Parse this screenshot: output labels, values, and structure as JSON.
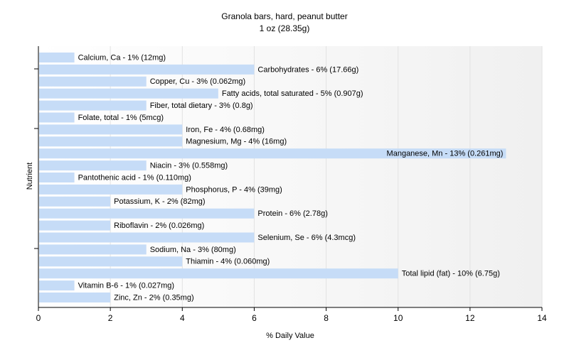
{
  "chart_data": {
    "type": "bar",
    "orientation": "horizontal",
    "title": "Granola bars, hard, peanut butter",
    "subtitle": "1 oz (28.35g)",
    "xlabel": "% Daily Value",
    "ylabel": "Nutrient",
    "xlim": [
      0,
      14
    ],
    "xticks": [
      0,
      2,
      4,
      6,
      8,
      10,
      12,
      14
    ],
    "grid": true,
    "colors": {
      "bar_fill": "#c6dcf7",
      "background_band": "#f2f2f2",
      "grid": "#e2e2e2",
      "axis": "#000000"
    },
    "categories": [
      "Calcium, Ca",
      "Carbohydrates",
      "Copper, Cu",
      "Fatty acids, total saturated",
      "Fiber, total dietary",
      "Folate, total",
      "Iron, Fe",
      "Magnesium, Mg",
      "Manganese, Mn",
      "Niacin",
      "Pantothenic acid",
      "Phosphorus, P",
      "Potassium, K",
      "Protein",
      "Riboflavin",
      "Selenium, Se",
      "Sodium, Na",
      "Thiamin",
      "Total lipid (fat)",
      "Vitamin B-6",
      "Zinc, Zn"
    ],
    "values": [
      1,
      6,
      3,
      5,
      3,
      1,
      4,
      4,
      13,
      3,
      1,
      4,
      2,
      6,
      2,
      6,
      3,
      4,
      10,
      1,
      2
    ],
    "labels": [
      "Calcium, Ca - 1% (12mg)",
      "Carbohydrates - 6% (17.66g)",
      "Copper, Cu - 3% (0.062mg)",
      "Fatty acids, total saturated - 5% (0.907g)",
      "Fiber, total dietary - 3% (0.8g)",
      "Folate, total - 1% (5mcg)",
      "Iron, Fe - 4% (0.68mg)",
      "Magnesium, Mg - 4% (16mg)",
      "Manganese, Mn - 13% (0.261mg)",
      "Niacin - 3% (0.558mg)",
      "Pantothenic acid - 1% (0.110mg)",
      "Phosphorus, P - 4% (39mg)",
      "Potassium, K - 2% (82mg)",
      "Protein - 6% (2.78g)",
      "Riboflavin - 2% (0.026mg)",
      "Selenium, Se - 6% (4.3mcg)",
      "Sodium, Na - 3% (80mg)",
      "Thiamin - 4% (0.060mg)",
      "Total lipid (fat) - 10% (6.75g)",
      "Vitamin B-6 - 1% (0.027mg)",
      "Zinc, Zn - 2% (0.35mg)"
    ]
  }
}
